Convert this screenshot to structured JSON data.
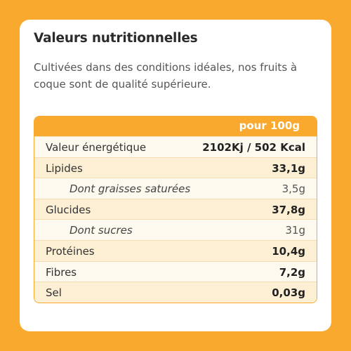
{
  "card": {
    "title": "Valeurs nutritionnelles",
    "description": "Cultivées dans des conditions idéales, nos fruits à coque sont de qualité supérieure."
  },
  "table": {
    "header": "pour 100g",
    "rows": [
      {
        "label": "Valeur énergétique",
        "value": "2102Kj / 502 Kcal"
      },
      {
        "label": "Lipides",
        "value": "33,1g"
      },
      {
        "label": "Dont graisses saturées",
        "value": "3,5g"
      },
      {
        "label": "Glucides",
        "value": "37,8g"
      },
      {
        "label": "Dont sucres",
        "value": "31g"
      },
      {
        "label": "Protéines",
        "value": "10,4g"
      },
      {
        "label": "Fibres",
        "value": "7,2g"
      },
      {
        "label": "Sel",
        "value": "0,03g"
      }
    ]
  },
  "colors": {
    "background": "#F8A92E",
    "row_light": "#FEF9EE",
    "row_dark": "#FCEFD3"
  }
}
